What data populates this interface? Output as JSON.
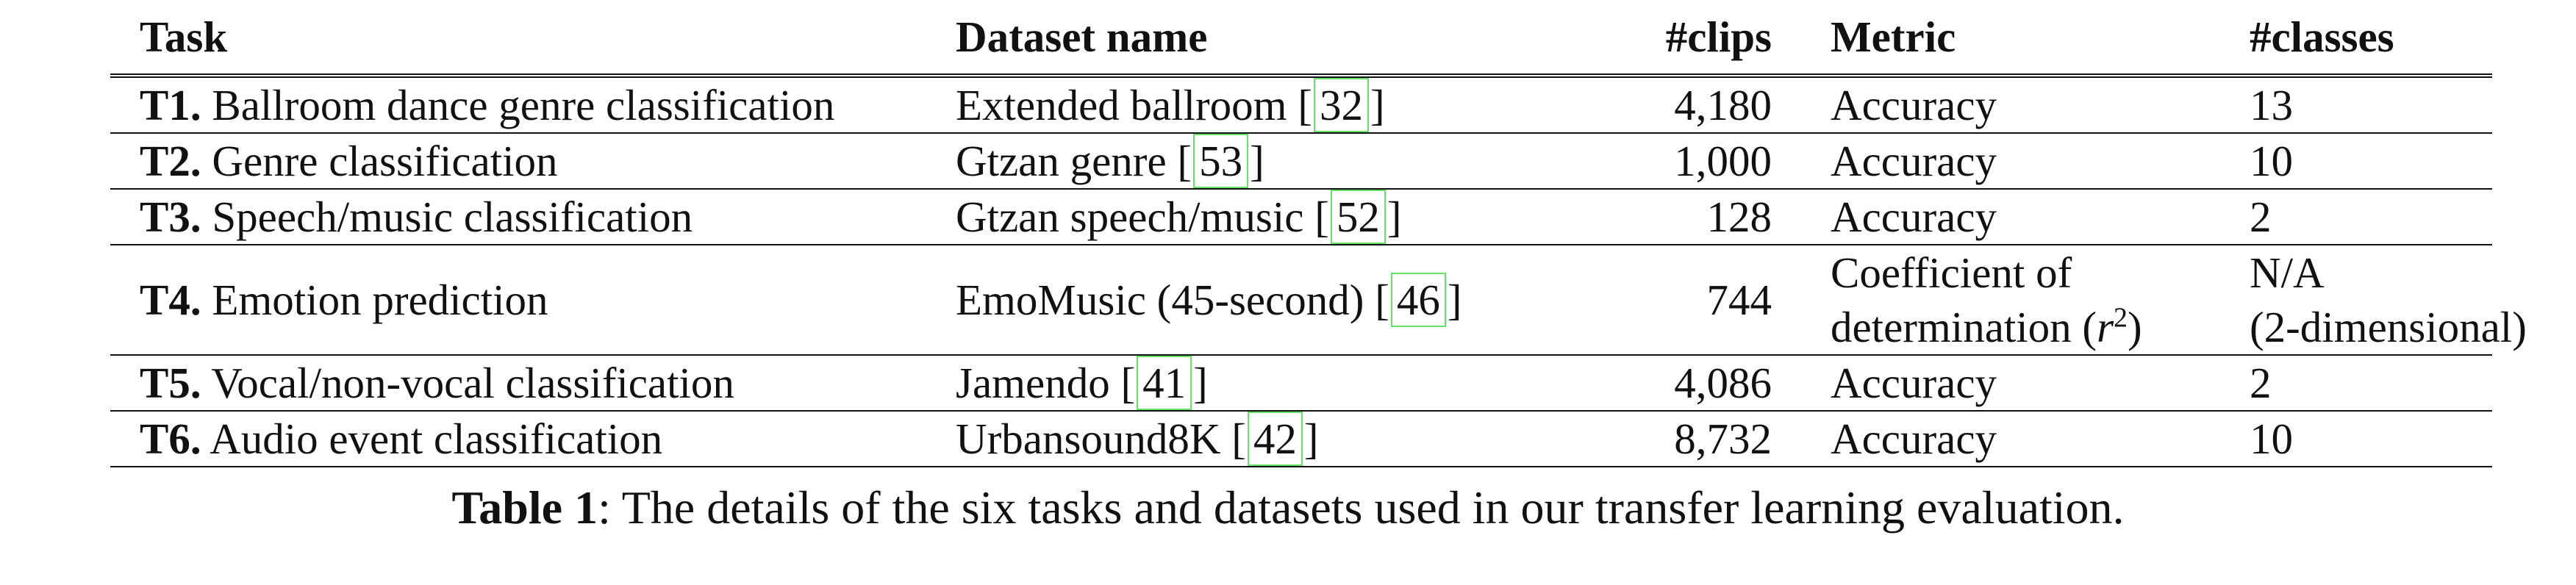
{
  "table": {
    "headers": [
      "Task",
      "Dataset name",
      "#clips",
      "Metric",
      "#classes"
    ],
    "rows": [
      {
        "task_id": "T1.",
        "task_name": "Ballroom dance genre classification",
        "dataset": "Extended ballroom",
        "cite": "32",
        "clips": "4,180",
        "metric_line1": "Accuracy",
        "metric_line2": "",
        "classes_line1": "13",
        "classes_line2": ""
      },
      {
        "task_id": "T2.",
        "task_name": "Genre classification",
        "dataset": "Gtzan genre",
        "cite": "53",
        "clips": "1,000",
        "metric_line1": "Accuracy",
        "metric_line2": "",
        "classes_line1": "10",
        "classes_line2": ""
      },
      {
        "task_id": "T3.",
        "task_name": "Speech/music classification",
        "dataset": "Gtzan speech/music",
        "cite": "52",
        "clips": "128",
        "metric_line1": "Accuracy",
        "metric_line2": "",
        "classes_line1": "2",
        "classes_line2": ""
      },
      {
        "task_id": "T4.",
        "task_name": "Emotion prediction",
        "dataset": "EmoMusic (45-second)",
        "cite": "46",
        "clips": "744",
        "metric_line1": "Coefficient of",
        "metric_line2": "determination (",
        "metric_symbol": "r",
        "metric_sup": "2",
        "metric_close": ")",
        "classes_line1": "N/A",
        "classes_line2": "(2-dimensional)"
      },
      {
        "task_id": "T5.",
        "task_name": "Vocal/non-vocal classification",
        "dataset": "Jamendo",
        "cite": "41",
        "clips": "4,086",
        "metric_line1": "Accuracy",
        "metric_line2": "",
        "classes_line1": "2",
        "classes_line2": ""
      },
      {
        "task_id": "T6.",
        "task_name": "Audio event classification",
        "dataset": "Urbansound8K",
        "cite": "42",
        "clips": "8,732",
        "metric_line1": "Accuracy",
        "metric_line2": "",
        "classes_line1": "10",
        "classes_line2": ""
      }
    ]
  },
  "caption": {
    "label": "Table 1",
    "text": ": The details of the six tasks and datasets used in our transfer learning evaluation."
  },
  "colors": {
    "citation_box": "#66e066",
    "text": "#111111"
  }
}
